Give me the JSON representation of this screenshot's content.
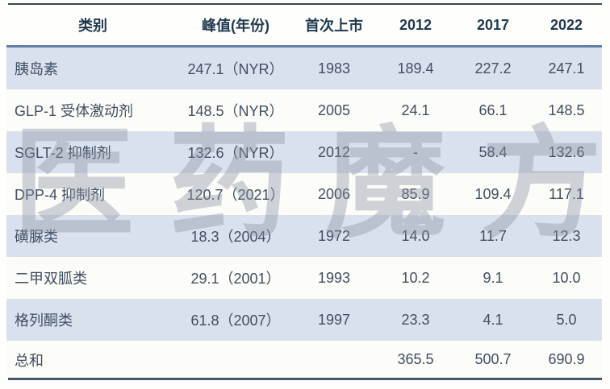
{
  "watermark": {
    "text": "医药魔方",
    "color": "rgba(138,148,163,0.40)"
  },
  "colors": {
    "stripe_row": "#dae1ee",
    "plain_row": "#fcfcf8",
    "header_text": "#1f3950",
    "cell_text": "#3f4e62",
    "header_rule": "#627fa6",
    "top_rule": "#3b4754",
    "bottom_rule": "#475669",
    "page_background": "#fefefc"
  },
  "chart_data": {
    "type": "table",
    "columns": [
      "类别",
      "峰值(年份)",
      "首次上市",
      "2012",
      "2017",
      "2022"
    ],
    "rows": [
      [
        "胰岛素",
        "247.1（NYR）",
        "1983",
        "189.4",
        "227.2",
        "247.1"
      ],
      [
        "GLP-1 受体激动剂",
        "148.5（NYR）",
        "2005",
        "24.1",
        "66.1",
        "148.5"
      ],
      [
        "SGLT-2 抑制剂",
        "132.6（NYR）",
        "2012",
        "-",
        "58.4",
        "132.6"
      ],
      [
        "DPP-4 抑制剂",
        "120.7（2021）",
        "2006",
        "85.9",
        "109.4",
        "117.1"
      ],
      [
        "磺脲类",
        "18.3（2004）",
        "1972",
        "14.0",
        "11.7",
        "12.3"
      ],
      [
        "二甲双胍类",
        "29.1（2001）",
        "1993",
        "10.2",
        "9.1",
        "10.0"
      ],
      [
        "格列酮类",
        "61.8（2007）",
        "1997",
        "23.3",
        "4.1",
        "5.0"
      ],
      [
        "总和",
        "",
        "",
        "365.5",
        "500.7",
        "690.9"
      ]
    ]
  }
}
